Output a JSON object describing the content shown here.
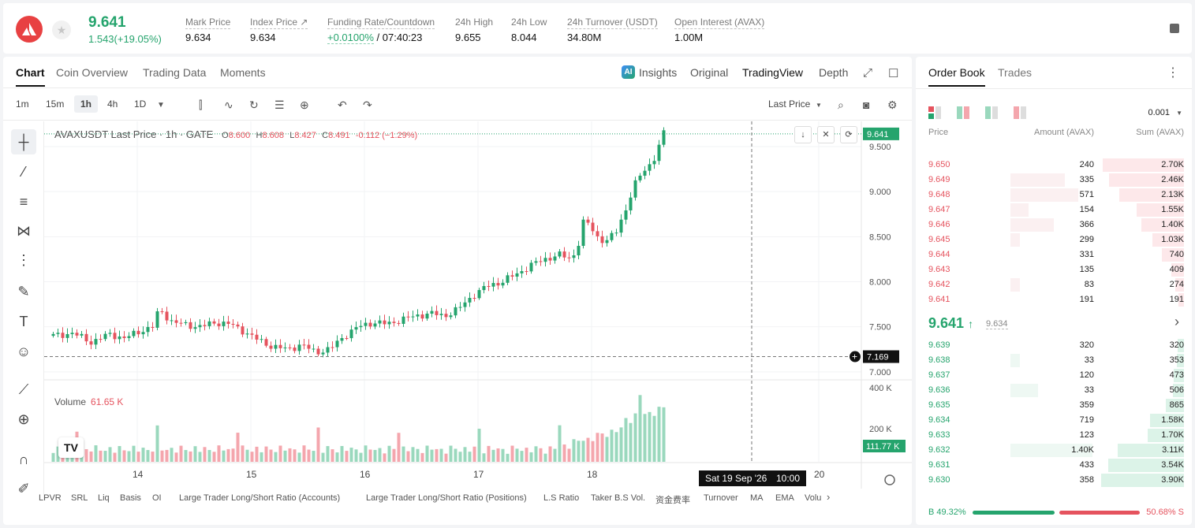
{
  "ticker": {
    "last_price": "9.641",
    "change": "1.543(+19.05%)",
    "stats": [
      {
        "label": "Mark Price",
        "value": "9.634"
      },
      {
        "label": "Index Price ↗",
        "value": "9.634"
      },
      {
        "label": "Funding Rate/Countdown",
        "value_green": "+0.0100%",
        "value": "/ 07:40:23"
      },
      {
        "label": "24h High",
        "value": "9.655"
      },
      {
        "label": "24h Low",
        "value": "8.044"
      },
      {
        "label": "24h Turnover (USDT)",
        "value": "34.80M"
      },
      {
        "label": "Open Interest (AVAX)",
        "value": "1.00M"
      }
    ]
  },
  "chart_tabs": [
    "Chart",
    "Coin Overview",
    "Trading Data",
    "Moments"
  ],
  "view_tabs": {
    "insights": "Insights",
    "original": "Original",
    "tradingview": "TradingView",
    "depth": "Depth",
    "ai_badge": "AI"
  },
  "timeframes": [
    "1m",
    "15m",
    "1h",
    "4h",
    "1D"
  ],
  "price_type": "Last Price",
  "legend": {
    "symbol": "AVAXUSDT Last Price · 1h · GATE",
    "o_label": "O",
    "o": "8.600",
    "h_label": "H",
    "h": "8.608",
    "l_label": "L",
    "l": "8.427",
    "c_label": "C",
    "c": "8.491",
    "chg": "-0.112 (−1.29%)"
  },
  "volume_legend": {
    "label": "Volume",
    "value": "61.65 K"
  },
  "tv_logo": "TV",
  "crosshair": {
    "time_label": "Sat 19 Sep '26",
    "hour_label": "10:00",
    "price_label": "7.169"
  },
  "chart_data": {
    "type": "candlestick",
    "last_price_label": "9.641",
    "price_axis": [
      "9.500",
      "9.000",
      "8.500",
      "8.000",
      "7.500",
      "7.000"
    ],
    "volume_axis": [
      "400 K",
      "200 K"
    ],
    "volume_last_label": "111.77 K",
    "x_ticks": [
      "14",
      "15",
      "16",
      "17",
      "18",
      "20"
    ],
    "ylim": [
      6.92,
      9.78
    ]
  },
  "bottom_tools": [
    "LPVR",
    "SRL",
    "Liq",
    "Basis",
    "OI",
    "Large Trader Long/Short Ratio (Accounts)",
    "Large Trader Long/Short Ratio (Positions)",
    "L.S Ratio",
    "Taker B.S Vol.",
    "资金费率",
    "Turnover",
    "MA",
    "EMA",
    "Volu"
  ],
  "orderbook": {
    "tabs": [
      "Order Book",
      "Trades"
    ],
    "precision": "0.001",
    "headers": {
      "price": "Price",
      "amount": "Amount (AVAX)",
      "sum": "Sum (AVAX)"
    },
    "asks": [
      {
        "price": "9.650",
        "amount": "240",
        "sum": "2.70K",
        "sum_frac": 0.98,
        "amt_frac": 0.0
      },
      {
        "price": "9.649",
        "amount": "335",
        "sum": "2.46K",
        "sum_frac": 0.9,
        "amt_frac": 0.6
      },
      {
        "price": "9.648",
        "amount": "571",
        "sum": "2.13K",
        "sum_frac": 0.78,
        "amt_frac": 0.75
      },
      {
        "price": "9.647",
        "amount": "154",
        "sum": "1.55K",
        "sum_frac": 0.57,
        "amt_frac": 0.2
      },
      {
        "price": "9.646",
        "amount": "366",
        "sum": "1.40K",
        "sum_frac": 0.51,
        "amt_frac": 0.48
      },
      {
        "price": "9.645",
        "amount": "299",
        "sum": "1.03K",
        "sum_frac": 0.38,
        "amt_frac": 0.1
      },
      {
        "price": "9.644",
        "amount": "331",
        "sum": "740",
        "sum_frac": 0.27,
        "amt_frac": 0.0
      },
      {
        "price": "9.643",
        "amount": "135",
        "sum": "409",
        "sum_frac": 0.15,
        "amt_frac": 0.0
      },
      {
        "price": "9.642",
        "amount": "83",
        "sum": "274",
        "sum_frac": 0.1,
        "amt_frac": 0.1
      },
      {
        "price": "9.641",
        "amount": "191",
        "sum": "191",
        "sum_frac": 0.07,
        "amt_frac": 0.0
      }
    ],
    "mid": {
      "price": "9.641",
      "arrow": "↑",
      "mark": "9.634",
      "chevron": "›"
    },
    "bids": [
      {
        "price": "9.639",
        "amount": "320",
        "sum": "320",
        "sum_frac": 0.08,
        "amt_frac": 0.0
      },
      {
        "price": "9.638",
        "amount": "33",
        "sum": "353",
        "sum_frac": 0.09,
        "amt_frac": 0.1
      },
      {
        "price": "9.637",
        "amount": "120",
        "sum": "473",
        "sum_frac": 0.12,
        "amt_frac": 0.0
      },
      {
        "price": "9.636",
        "amount": "33",
        "sum": "506",
        "sum_frac": 0.13,
        "amt_frac": 0.3
      },
      {
        "price": "9.635",
        "amount": "359",
        "sum": "865",
        "sum_frac": 0.22,
        "amt_frac": 0.0
      },
      {
        "price": "9.634",
        "amount": "719",
        "sum": "1.58K",
        "sum_frac": 0.41,
        "amt_frac": 0.0
      },
      {
        "price": "9.633",
        "amount": "123",
        "sum": "1.70K",
        "sum_frac": 0.44,
        "amt_frac": 0.0
      },
      {
        "price": "9.632",
        "amount": "1.40K",
        "sum": "3.11K",
        "sum_frac": 0.8,
        "amt_frac": 0.9
      },
      {
        "price": "9.631",
        "amount": "433",
        "sum": "3.54K",
        "sum_frac": 0.91,
        "amt_frac": 0.0
      },
      {
        "price": "9.630",
        "amount": "358",
        "sum": "3.90K",
        "sum_frac": 1.0,
        "amt_frac": 0.0
      }
    ],
    "buy_ratio": "B 49.32%",
    "sell_ratio": "50.68% S",
    "buy_frac": 0.4932
  },
  "colors": {
    "up": "#25a46d",
    "down": "#e5535e",
    "up_vol": "#9ad8bd",
    "down_vol": "#f4a6ad"
  }
}
